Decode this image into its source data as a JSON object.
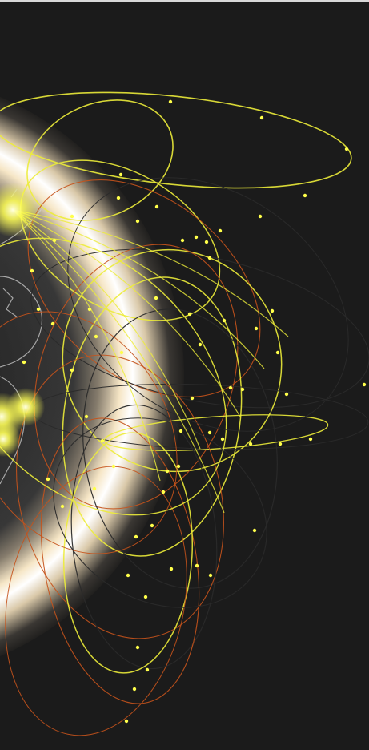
{
  "image": {
    "subject": "",
    "background_color": "#1b1b1b",
    "globe": {
      "halo_color": "#ffffff",
      "halo_warm": "#f3dcb4",
      "shadow_color": "#0a0a0a",
      "land_color": "#cfcfcf"
    },
    "orbit_colors": {
      "bright": "#ecec3a",
      "amber": "#c5531c",
      "dark": "#2a2a2a"
    },
    "node_color": "#ffff4a",
    "glow_color": "#ffff66"
  }
}
